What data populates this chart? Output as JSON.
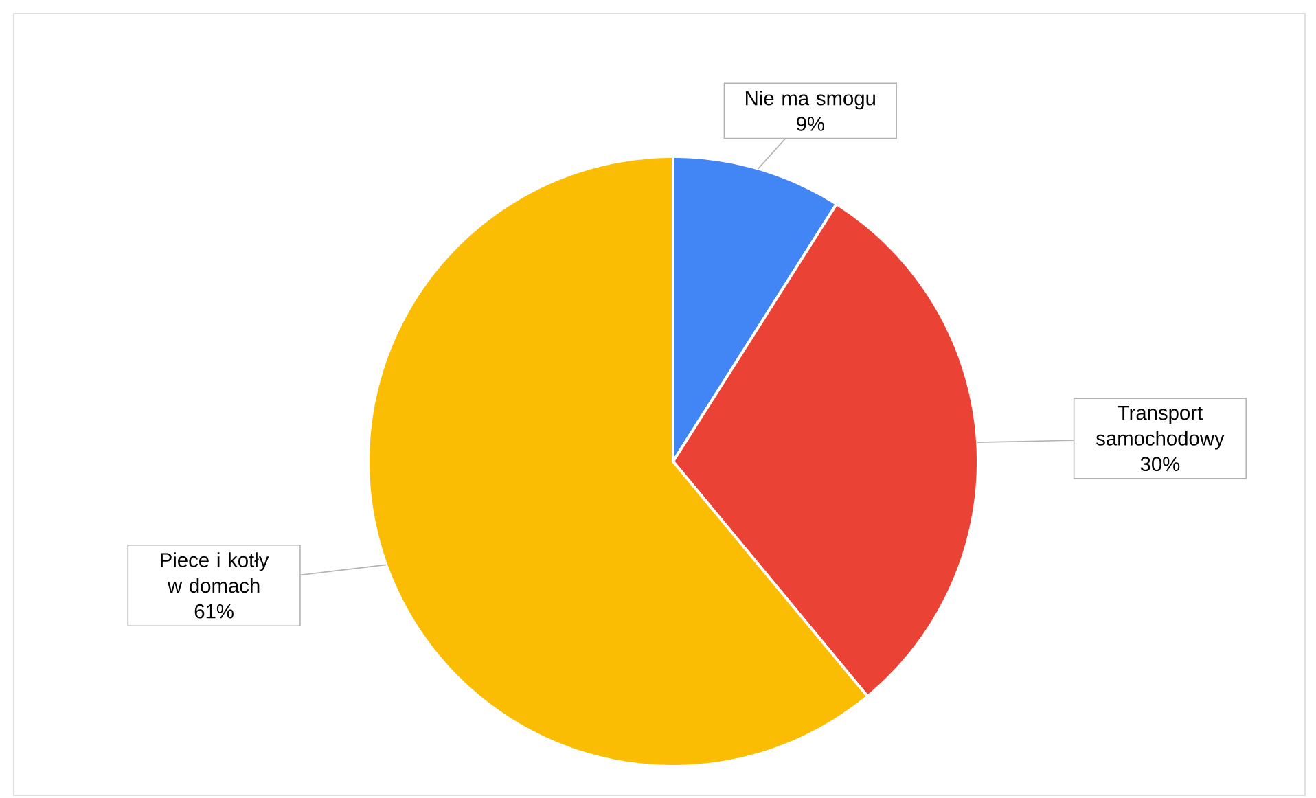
{
  "chart_data": {
    "type": "pie",
    "categories": [
      "Nie ma smogu",
      "Transport samochodowy",
      "Piece i kotły w domach"
    ],
    "values": [
      9,
      30,
      61
    ],
    "value_labels": [
      "9%",
      "30%",
      "61%"
    ],
    "colors": [
      "#4285f4",
      "#ea4335",
      "#fbbc04"
    ]
  }
}
